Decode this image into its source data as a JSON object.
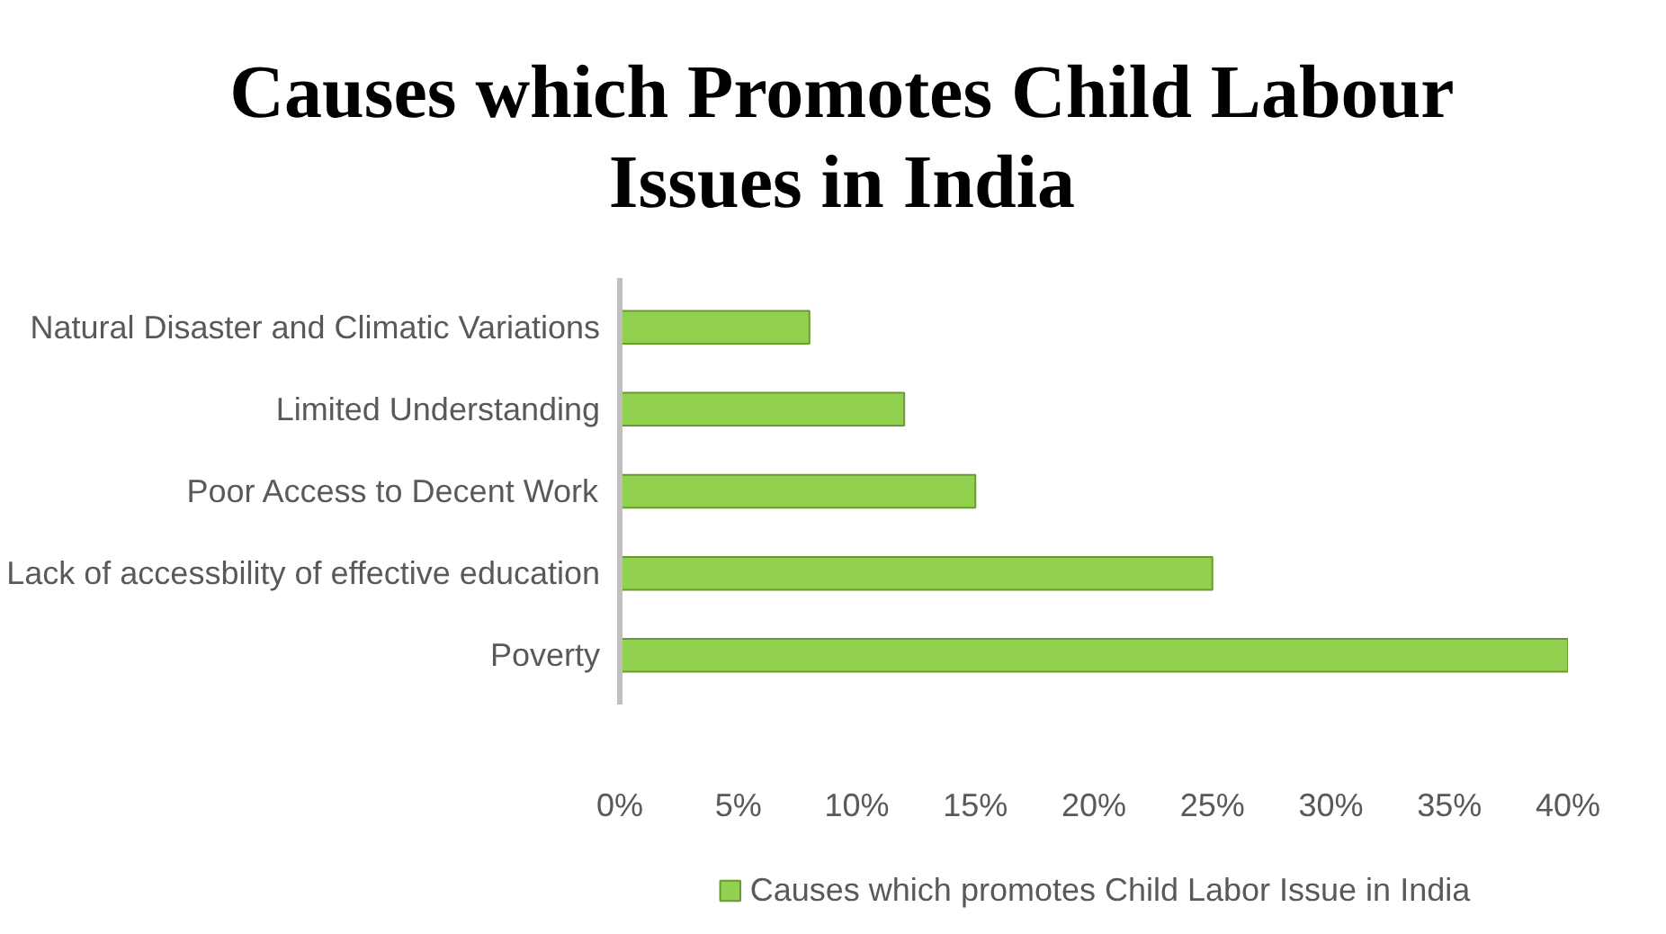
{
  "chart_data": {
    "type": "bar",
    "orientation": "horizontal",
    "title": "Causes which Promotes Child Labour\nIssues in India",
    "categories": [
      "Natural Disaster and Climatic Variations",
      "Limited Understanding",
      "Poor Access to Decent Work",
      "Lack of accessbility of effective education",
      "Poverty"
    ],
    "series": [
      {
        "name": "Causes which promotes Child Labor Issue in India",
        "color": "#92d050",
        "values": [
          8,
          12,
          15,
          25,
          40
        ]
      }
    ],
    "xlim": [
      0,
      40
    ],
    "xticks": [
      {
        "value": 0,
        "label": "0%"
      },
      {
        "value": 5,
        "label": "5%"
      },
      {
        "value": 10,
        "label": "10%"
      },
      {
        "value": 15,
        "label": "15%"
      },
      {
        "value": 20,
        "label": "20%"
      },
      {
        "value": 25,
        "label": "25%"
      },
      {
        "value": 30,
        "label": "30%"
      },
      {
        "value": 35,
        "label": "35%"
      },
      {
        "value": 40,
        "label": "40%"
      }
    ],
    "grid": false,
    "legend": "bottom"
  }
}
